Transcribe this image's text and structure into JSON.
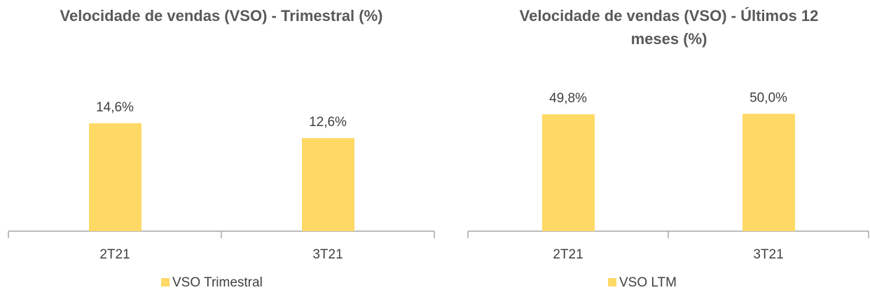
{
  "chart_data": [
    {
      "type": "bar",
      "title": "Velocidade de vendas (VSO) - Trimestral (%)",
      "categories": [
        "2T21",
        "3T21"
      ],
      "series": [
        {
          "name": "VSO Trimestral",
          "color": "#ffd966",
          "values": [
            14.6,
            12.6
          ],
          "value_labels": [
            "14,6%",
            "12,6%"
          ]
        }
      ],
      "ylim": [
        0,
        20
      ]
    },
    {
      "type": "bar",
      "title": "Velocidade de vendas (VSO) - Últimos 12 meses (%)",
      "categories": [
        "2T21",
        "3T21"
      ],
      "series": [
        {
          "name": "VSO LTM",
          "color": "#ffd966",
          "values": [
            49.8,
            50.0
          ],
          "value_labels": [
            "49,8%",
            "50,0%"
          ]
        }
      ],
      "ylim": [
        0,
        60
      ]
    }
  ]
}
